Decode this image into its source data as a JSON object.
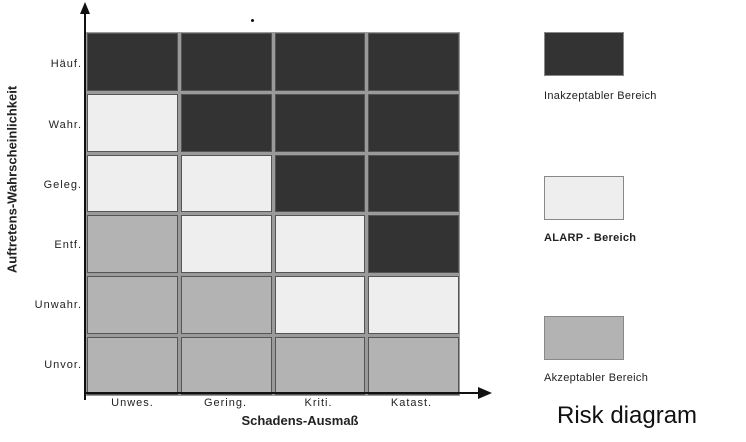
{
  "diagram": {
    "rows": [
      {
        "label": "Häuf.",
        "cells": [
          "inacceptable",
          "inacceptable",
          "inacceptable",
          "inacceptable"
        ]
      },
      {
        "label": "Wahr.",
        "cells": [
          "alarp",
          "inacceptable",
          "inacceptable",
          "inacceptable"
        ]
      },
      {
        "label": "Geleg.",
        "cells": [
          "alarp",
          "alarp",
          "inacceptable",
          "inacceptable"
        ]
      },
      {
        "label": "Entf.",
        "cells": [
          "acceptable",
          "alarp",
          "alarp",
          "inacceptable"
        ]
      },
      {
        "label": "Unwahr.",
        "cells": [
          "acceptable",
          "acceptable",
          "alarp",
          "alarp"
        ]
      },
      {
        "label": "Unvor.",
        "cells": [
          "acceptable",
          "acceptable",
          "acceptable",
          "acceptable"
        ]
      }
    ],
    "columns": [
      "Unwes.",
      "Gering.",
      "Kriti.",
      "Katast."
    ],
    "y_title": "Auftretens-Wahrscheinlichkeit",
    "x_title": "Schadens-Ausmaß"
  },
  "legend": {
    "inacceptable": {
      "label": "Inakzeptabler Bereich",
      "color": "#333333"
    },
    "alarp": {
      "label": "ALARP - Bereich",
      "color": "#eeeeee"
    },
    "acceptable": {
      "label": "Akzeptabler Bereich",
      "color": "#b3b3b3"
    }
  },
  "caption": "Risk diagram"
}
